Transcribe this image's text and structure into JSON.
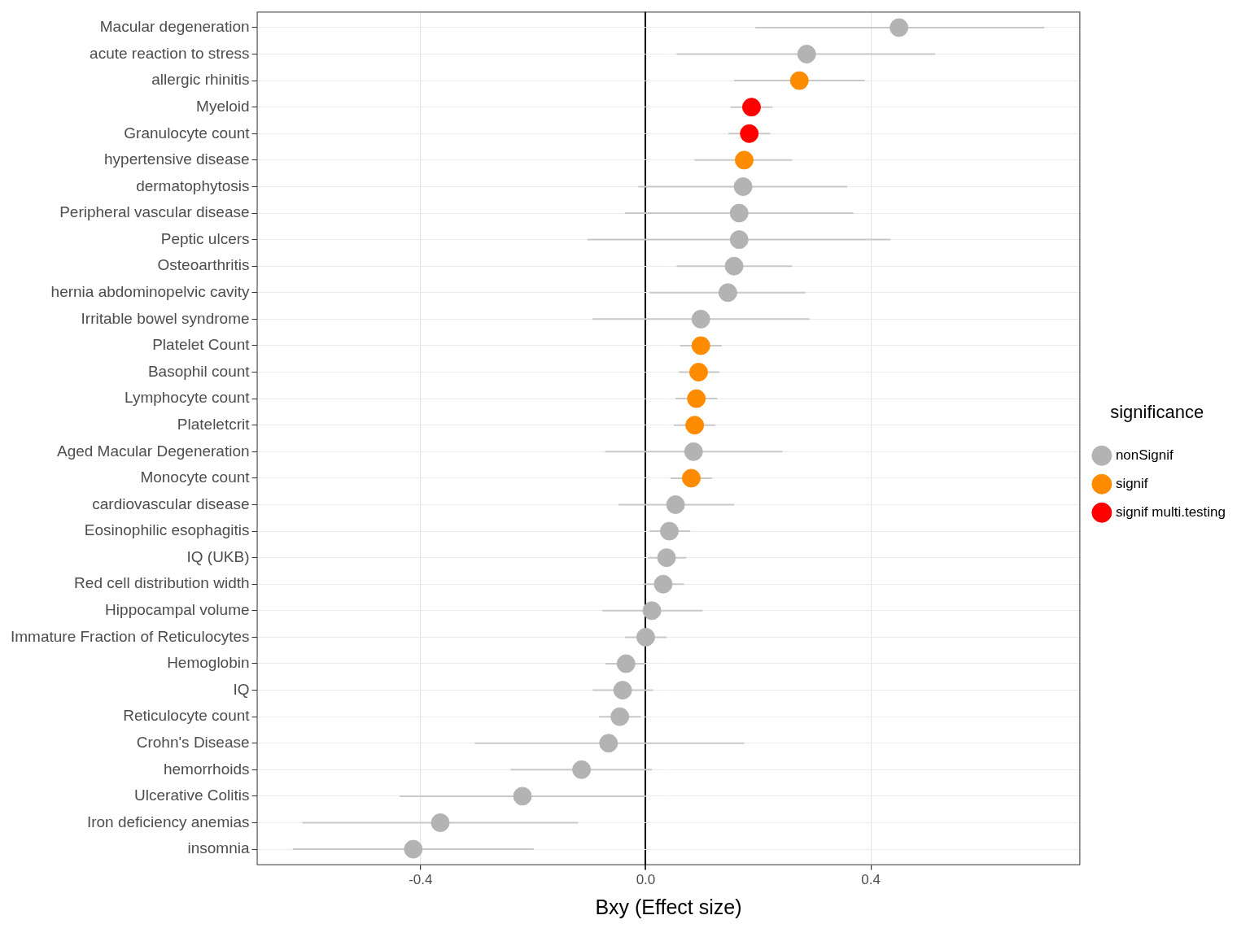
{
  "chart_data": {
    "type": "scatter",
    "x_label": "Bxy (Effect size)",
    "categories": [
      "Macular degeneration",
      "acute reaction to stress",
      "allergic rhinitis",
      "Myeloid",
      "Granulocyte count",
      "hypertensive disease",
      "dermatophytosis",
      "Peripheral vascular disease",
      "Peptic ulcers",
      "Osteoarthritis",
      "hernia abdominopelvic cavity",
      "Irritable bowel syndrome",
      "Platelet Count",
      "Basophil count",
      "Lymphocyte count",
      "Plateletcrit",
      "Aged Macular Degeneration",
      "Monocyte count",
      "cardiovascular disease",
      "Eosinophilic esophagitis",
      "IQ (UKB)",
      "Red cell distribution width",
      "Hippocampal volume",
      "Immature Fraction of Reticulocytes",
      "Hemoglobin",
      "IQ",
      "Reticulocyte count",
      "Crohn's Disease",
      "hemorrhoids",
      "Ulcerative Colitis",
      "Iron deficiency anemias",
      "insomnia"
    ],
    "series": [
      {
        "name": "nonSignif",
        "color": "#b3b3b3",
        "values": [
          0.45,
          0.286,
          null,
          null,
          null,
          null,
          0.173,
          0.166,
          0.166,
          0.157,
          0.146,
          0.098,
          null,
          null,
          null,
          null,
          0.085,
          null,
          0.053,
          0.042,
          0.037,
          0.031,
          0.011,
          0.0,
          -0.035,
          -0.041,
          -0.046,
          -0.066,
          -0.114,
          -0.219,
          -0.365,
          -0.413
        ],
        "ci_low": [
          0.195,
          0.055,
          null,
          null,
          null,
          null,
          -0.013,
          -0.037,
          -0.103,
          0.055,
          0.007,
          -0.094,
          null,
          null,
          null,
          null,
          -0.072,
          null,
          -0.048,
          0.007,
          0.004,
          -0.004,
          -0.077,
          -0.037,
          -0.072,
          -0.094,
          -0.083,
          -0.304,
          -0.24,
          -0.437,
          -0.61,
          -0.627
        ],
        "ci_high": [
          0.708,
          0.514,
          null,
          null,
          null,
          null,
          0.358,
          0.369,
          0.435,
          0.26,
          0.284,
          0.291,
          null,
          null,
          null,
          null,
          0.243,
          null,
          0.157,
          0.079,
          0.072,
          0.068,
          0.101,
          0.037,
          0.0,
          0.013,
          -0.009,
          0.175,
          0.011,
          0.0,
          -0.12,
          -0.199
        ]
      },
      {
        "name": "signif",
        "color": "#ff8c00",
        "values": [
          null,
          null,
          0.273,
          null,
          null,
          0.175,
          null,
          null,
          null,
          null,
          null,
          null,
          0.098,
          0.094,
          0.09,
          0.087,
          null,
          0.081,
          null,
          null,
          null,
          null,
          null,
          null,
          null,
          null,
          null,
          null,
          null,
          null,
          null,
          null
        ],
        "ci_low": [
          null,
          null,
          0.157,
          null,
          null,
          0.087,
          null,
          null,
          null,
          null,
          null,
          null,
          0.061,
          0.059,
          0.053,
          0.05,
          null,
          0.044,
          null,
          null,
          null,
          null,
          null,
          null,
          null,
          null,
          null,
          null,
          null,
          null,
          null,
          null
        ],
        "ci_high": [
          null,
          null,
          0.389,
          null,
          null,
          0.26,
          null,
          null,
          null,
          null,
          null,
          null,
          0.135,
          0.131,
          0.127,
          0.124,
          null,
          0.118,
          null,
          null,
          null,
          null,
          null,
          null,
          null,
          null,
          null,
          null,
          null,
          null,
          null,
          null
        ]
      },
      {
        "name": "signif multi.testing",
        "color": "#ff0000",
        "values": [
          null,
          null,
          null,
          0.188,
          0.184,
          null,
          null,
          null,
          null,
          null,
          null,
          null,
          null,
          null,
          null,
          null,
          null,
          null,
          null,
          null,
          null,
          null,
          null,
          null,
          null,
          null,
          null,
          null,
          null,
          null,
          null,
          null
        ],
        "ci_low": [
          null,
          null,
          null,
          0.151,
          0.147,
          null,
          null,
          null,
          null,
          null,
          null,
          null,
          null,
          null,
          null,
          null,
          null,
          null,
          null,
          null,
          null,
          null,
          null,
          null,
          null,
          null,
          null,
          null,
          null,
          null,
          null,
          null
        ],
        "ci_high": [
          null,
          null,
          null,
          0.225,
          0.221,
          null,
          null,
          null,
          null,
          null,
          null,
          null,
          null,
          null,
          null,
          null,
          null,
          null,
          null,
          null,
          null,
          null,
          null,
          null,
          null,
          null,
          null,
          null,
          null,
          null,
          null,
          null
        ]
      }
    ],
    "xlim": [
      -0.691,
      0.772
    ],
    "xticks": [
      {
        "value": -0.4,
        "label": "-0.4"
      },
      {
        "value": 0,
        "label": "0.0"
      },
      {
        "value": 0.4,
        "label": "0.4"
      }
    ],
    "grid": true,
    "legend": "right",
    "legend_title": "significance"
  }
}
